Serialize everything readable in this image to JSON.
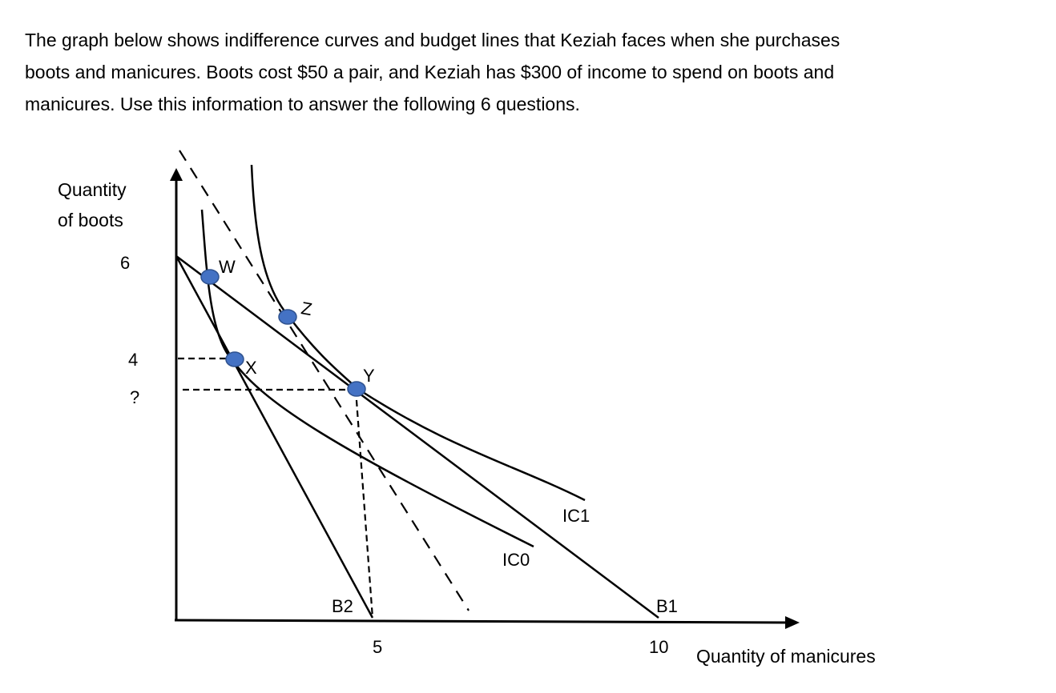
{
  "intro": {
    "lines": [
      "The graph below shows indifference curves and budget lines that Keziah faces when she purchases",
      "boots and manicures.  Boots cost $50 a pair, and Keziah has $300 of income to spend on boots and",
      "manicures. Use this information to answer the following 6 questions."
    ]
  },
  "graph": {
    "y_axis_label": [
      "Quantity",
      "of boots"
    ],
    "x_axis_label": "Quantity of manicures",
    "y_ticks": [
      "6",
      "4",
      "?"
    ],
    "x_ticks": [
      "5",
      "10"
    ],
    "points": [
      "W",
      "X",
      "Y",
      "Z"
    ],
    "curves": {
      "ic0": "IC0",
      "ic1": "IC1",
      "b1": "B1",
      "b2": "B2"
    },
    "point_color": "#4472C4"
  }
}
